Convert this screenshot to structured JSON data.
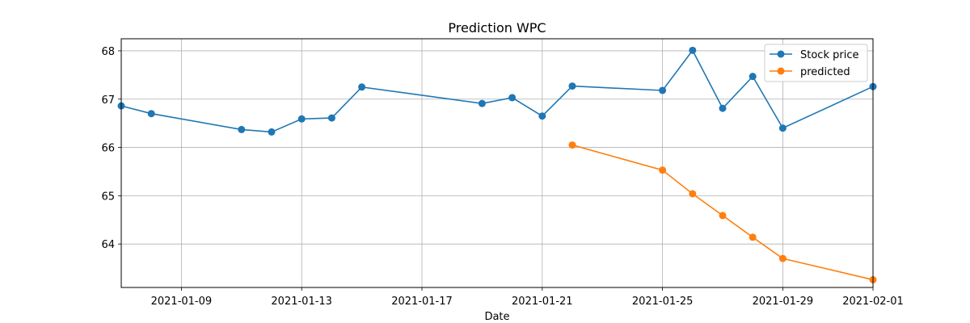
{
  "chart_data": {
    "type": "line",
    "title": "Prediction WPC",
    "xlabel": "Date",
    "ylabel": "",
    "x_type": "date",
    "xlim": [
      "2021-01-07",
      "2021-02-01"
    ],
    "ylim": [
      63.1,
      68.25
    ],
    "x_ticks": [
      "2021-01-09",
      "2021-01-13",
      "2021-01-17",
      "2021-01-21",
      "2021-01-25",
      "2021-01-29",
      "2021-02-01"
    ],
    "y_ticks": [
      64,
      65,
      66,
      67,
      68
    ],
    "grid": true,
    "legend_position": "top-right",
    "series": [
      {
        "name": "Stock price",
        "color": "#1f77b4",
        "marker": "circle",
        "points": [
          {
            "x": "2021-01-07",
            "y": 66.86
          },
          {
            "x": "2021-01-08",
            "y": 66.7
          },
          {
            "x": "2021-01-11",
            "y": 66.37
          },
          {
            "x": "2021-01-12",
            "y": 66.32
          },
          {
            "x": "2021-01-13",
            "y": 66.59
          },
          {
            "x": "2021-01-14",
            "y": 66.61
          },
          {
            "x": "2021-01-15",
            "y": 67.25
          },
          {
            "x": "2021-01-19",
            "y": 66.91
          },
          {
            "x": "2021-01-20",
            "y": 67.03
          },
          {
            "x": "2021-01-21",
            "y": 66.65
          },
          {
            "x": "2021-01-22",
            "y": 67.27
          },
          {
            "x": "2021-01-25",
            "y": 67.18
          },
          {
            "x": "2021-01-26",
            "y": 68.01
          },
          {
            "x": "2021-01-27",
            "y": 66.81
          },
          {
            "x": "2021-01-28",
            "y": 67.47
          },
          {
            "x": "2021-01-29",
            "y": 66.4
          },
          {
            "x": "2021-02-01",
            "y": 67.26
          }
        ]
      },
      {
        "name": "predicted",
        "color": "#ff7f0e",
        "marker": "circle",
        "points": [
          {
            "x": "2021-01-22",
            "y": 66.05
          },
          {
            "x": "2021-01-25",
            "y": 65.53
          },
          {
            "x": "2021-01-26",
            "y": 65.04
          },
          {
            "x": "2021-01-27",
            "y": 64.59
          },
          {
            "x": "2021-01-28",
            "y": 64.14
          },
          {
            "x": "2021-01-29",
            "y": 63.7
          },
          {
            "x": "2021-02-01",
            "y": 63.26
          }
        ]
      }
    ]
  }
}
